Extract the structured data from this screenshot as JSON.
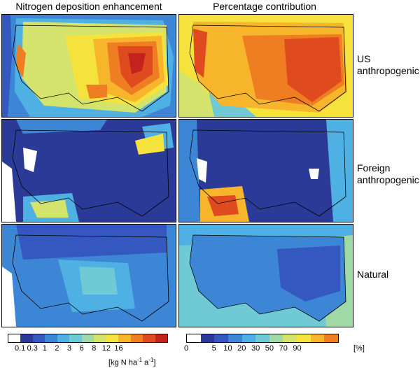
{
  "columns": {
    "left_title": "Nitrogen deposition enhancement",
    "right_title": "Percentage contribution"
  },
  "rows": [
    {
      "label_line1": "US",
      "label_line2": "anthropogenic"
    },
    {
      "label_line1": "Foreign",
      "label_line2": "anthropogenic"
    },
    {
      "label_line1": "Natural",
      "label_line2": ""
    }
  ],
  "colorbar_left": {
    "ticks": [
      "0.1",
      "0.3",
      "1",
      "2",
      "3",
      "6",
      "8",
      "12",
      "16"
    ],
    "unit_pre": "[kg N ha",
    "unit_sup1": "-1",
    "unit_mid": " a",
    "unit_sup2": "-1",
    "unit_post": "]"
  },
  "colorbar_right": {
    "ticks": [
      "0",
      "5",
      "10",
      "20",
      "30",
      "50",
      "70",
      "90"
    ],
    "unit": "[%]"
  },
  "colors": {
    "palette": [
      "#ffffff",
      "#2b3a97",
      "#3457c0",
      "#3d86d6",
      "#4fb1e3",
      "#6fcad6",
      "#9fd9a6",
      "#d4e36c",
      "#f6e23c",
      "#f7b52c",
      "#ef7d22",
      "#e04a1f",
      "#c3231c"
    ]
  }
}
